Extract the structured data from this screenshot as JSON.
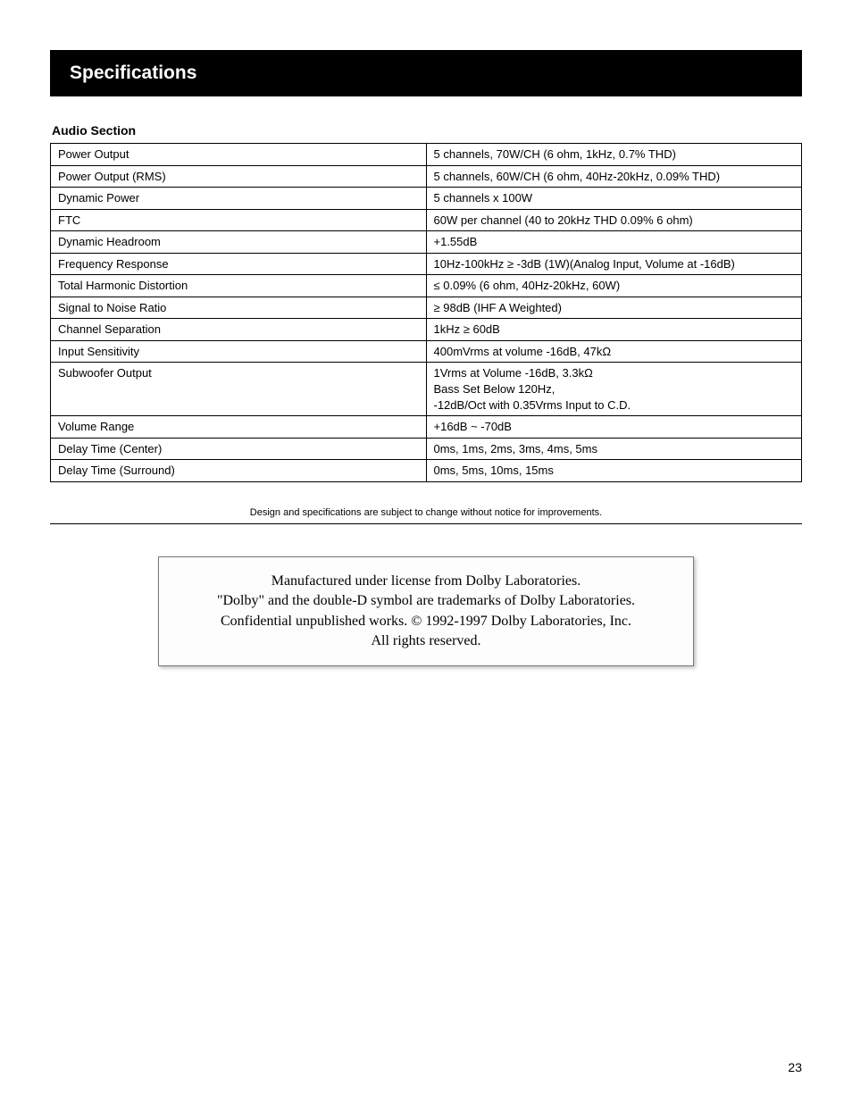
{
  "header": {
    "title": "Specifications"
  },
  "audio_section": {
    "title": "Audio Section",
    "rows": [
      {
        "label": "Power Output",
        "value": "5 channels, 70W/CH (6 ohm, 1kHz, 0.7% THD)"
      },
      {
        "label": "Power Output (RMS)",
        "value": "5 channels, 60W/CH (6 ohm, 40Hz-20kHz, 0.09% THD)"
      },
      {
        "label": "Dynamic Power",
        "value": "5 channels x 100W"
      },
      {
        "label": "FTC",
        "value": "60W per channel (40 to 20kHz THD 0.09% 6 ohm)"
      },
      {
        "label": "Dynamic Headroom",
        "value": "+1.55dB"
      },
      {
        "label": "Frequency Response",
        "value": "10Hz-100kHz ≥ -3dB (1W)(Analog Input, Volume at -16dB)"
      },
      {
        "label": "Total Harmonic Distortion",
        "value": "≤ 0.09% (6 ohm, 40Hz-20kHz, 60W)"
      },
      {
        "label": "Signal to Noise Ratio",
        "value": "≥ 98dB (IHF A Weighted)"
      },
      {
        "label": "Channel Separation",
        "value": "1kHz ≥ 60dB"
      },
      {
        "label": "Input Sensitivity",
        "value": "400mVrms at volume -16dB, 47kΩ"
      },
      {
        "label": "Subwoofer Output",
        "value": "1Vrms at Volume -16dB, 3.3kΩ\nBass Set Below 120Hz,\n-12dB/Oct with 0.35Vrms Input to C.D."
      },
      {
        "label": "Volume Range",
        "value": "+16dB ~ -70dB"
      },
      {
        "label": "Delay Time (Center)",
        "value": "0ms, 1ms, 2ms, 3ms, 4ms, 5ms"
      },
      {
        "label": "Delay Time (Surround)",
        "value": "0ms, 5ms, 10ms, 15ms"
      }
    ]
  },
  "disclaimer": "Design and specifications are subject to change without notice for improvements.",
  "dolby": {
    "line1": "Manufactured under license from Dolby Laboratories.",
    "line2": "\"Dolby\" and the double-D symbol are trademarks of Dolby Laboratories.",
    "line3": "Confidential unpublished works.  © 1992-1997 Dolby Laboratories, Inc.",
    "line4": "All rights reserved."
  },
  "page_number": "23",
  "colors": {
    "header_bg": "#000000",
    "header_fg": "#ffffff",
    "body_bg": "#ffffff",
    "border": "#000000"
  }
}
